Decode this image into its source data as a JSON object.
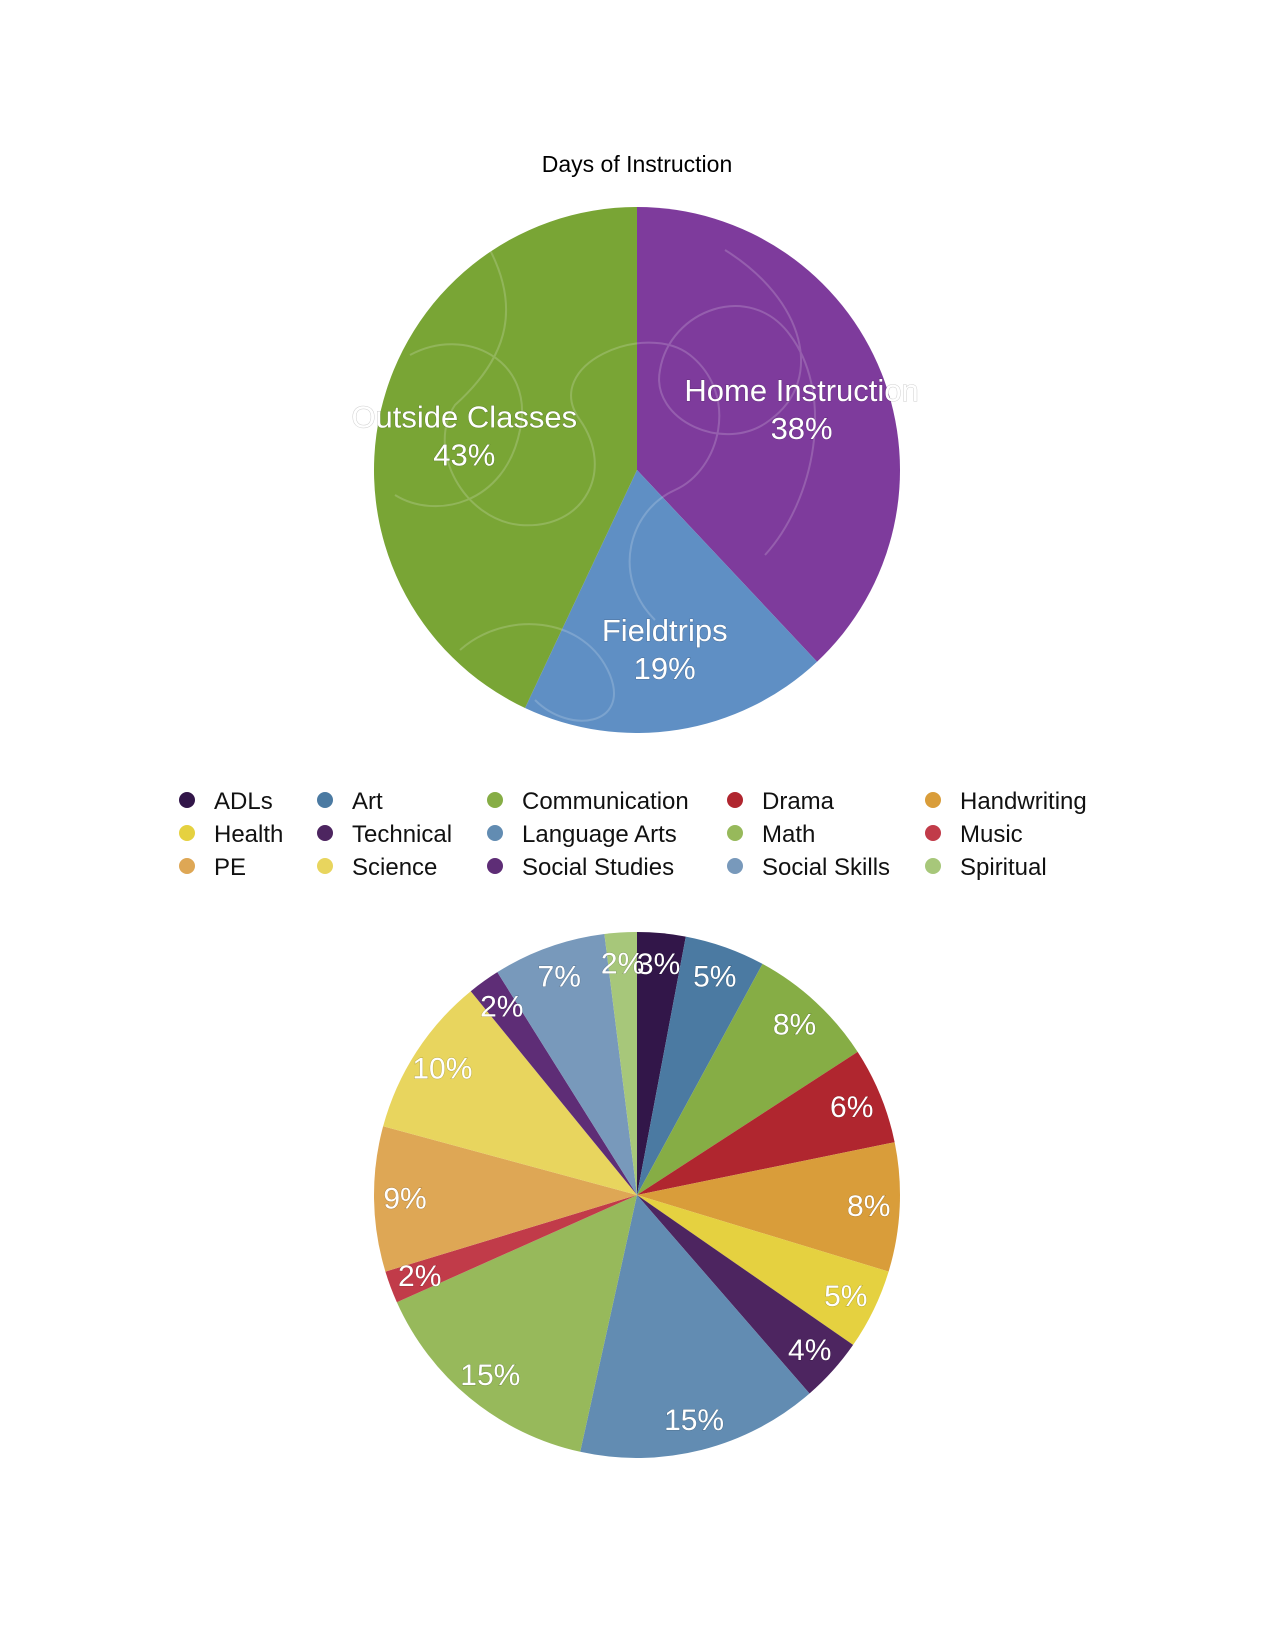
{
  "chart_data": [
    {
      "type": "pie",
      "title": "Days of Instruction",
      "slices": [
        {
          "label": "Home Instruction",
          "value": 38,
          "display": "38%",
          "color": "#7e3b9c"
        },
        {
          "label": "Fieldtrips",
          "value": 19,
          "display": "19%",
          "color": "#5f8fc4"
        },
        {
          "label": "Outside Classes",
          "value": 43,
          "display": "43%",
          "color": "#79a535"
        }
      ]
    },
    {
      "type": "pie",
      "title": "",
      "legend_position": "top",
      "slices": [
        {
          "label": "ADLs",
          "value": 3,
          "display": "3%",
          "color": "#321649"
        },
        {
          "label": "Art",
          "value": 5,
          "display": "5%",
          "color": "#4b7aa2"
        },
        {
          "label": "Communication",
          "value": 8,
          "display": "8%",
          "color": "#86ad45"
        },
        {
          "label": "Drama",
          "value": 6,
          "display": "6%",
          "color": "#b0262f"
        },
        {
          "label": "Handwriting",
          "value": 8,
          "display": "8%",
          "color": "#d99d3a"
        },
        {
          "label": "Health",
          "value": 5,
          "display": "5%",
          "color": "#e5d140"
        },
        {
          "label": "Technical",
          "value": 4,
          "display": "4%",
          "color": "#4d2560"
        },
        {
          "label": "Language Arts",
          "value": 15,
          "display": "15%",
          "color": "#628cb2"
        },
        {
          "label": "Math",
          "value": 15,
          "display": "15%",
          "color": "#97b95b"
        },
        {
          "label": "Music",
          "value": 2,
          "display": "2%",
          "color": "#c13b49"
        },
        {
          "label": "PE",
          "value": 9,
          "display": "9%",
          "color": "#dea755"
        },
        {
          "label": "Science",
          "value": 10,
          "display": "10%",
          "color": "#e8d55e"
        },
        {
          "label": "Social Studies",
          "value": 2,
          "display": "2%",
          "color": "#5e2d76"
        },
        {
          "label": "Social Skills",
          "value": 7,
          "display": "7%",
          "color": "#7899bb"
        },
        {
          "label": "Spiritual",
          "value": 2,
          "display": "2%",
          "color": "#a7c77a"
        }
      ]
    }
  ]
}
